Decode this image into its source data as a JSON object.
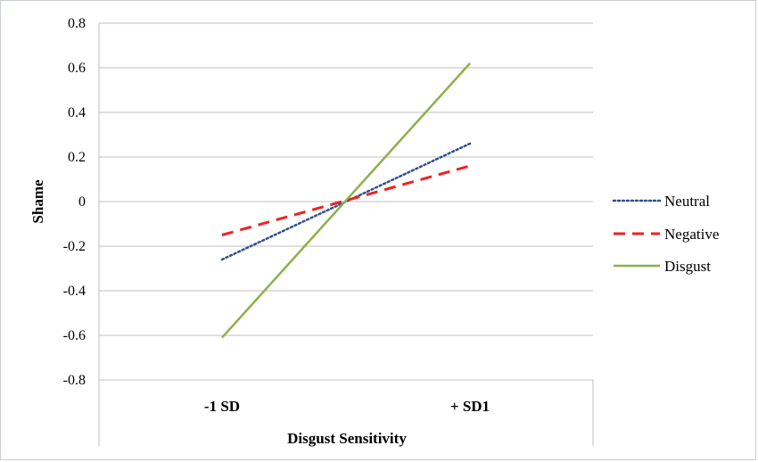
{
  "chart_data": {
    "type": "line",
    "title": "",
    "xlabel": "Disgust Sensitivity",
    "ylabel": "Shame",
    "categories": [
      "-1 SD",
      "+ SD1"
    ],
    "ylim": [
      -0.8,
      0.8
    ],
    "yticks": [
      0.8,
      0.6,
      0.4,
      0.2,
      0,
      -0.2,
      -0.4,
      -0.6,
      -0.8
    ],
    "ytick_labels": [
      "0.8",
      "0.6",
      "0.4",
      "0.2",
      "0",
      "-0.2",
      "-0.4",
      "-0.6",
      "-0.8"
    ],
    "grid": true,
    "legend_position": "right",
    "series": [
      {
        "name": "Neutral",
        "values": [
          -0.26,
          0.26
        ],
        "color": "#2f4f8f",
        "style": "dotted"
      },
      {
        "name": "Negative",
        "values": [
          -0.15,
          0.16
        ],
        "color": "#ee2222",
        "style": "dashed"
      },
      {
        "name": "Disgust",
        "values": [
          -0.61,
          0.62
        ],
        "color": "#8db04a",
        "style": "solid"
      }
    ]
  }
}
